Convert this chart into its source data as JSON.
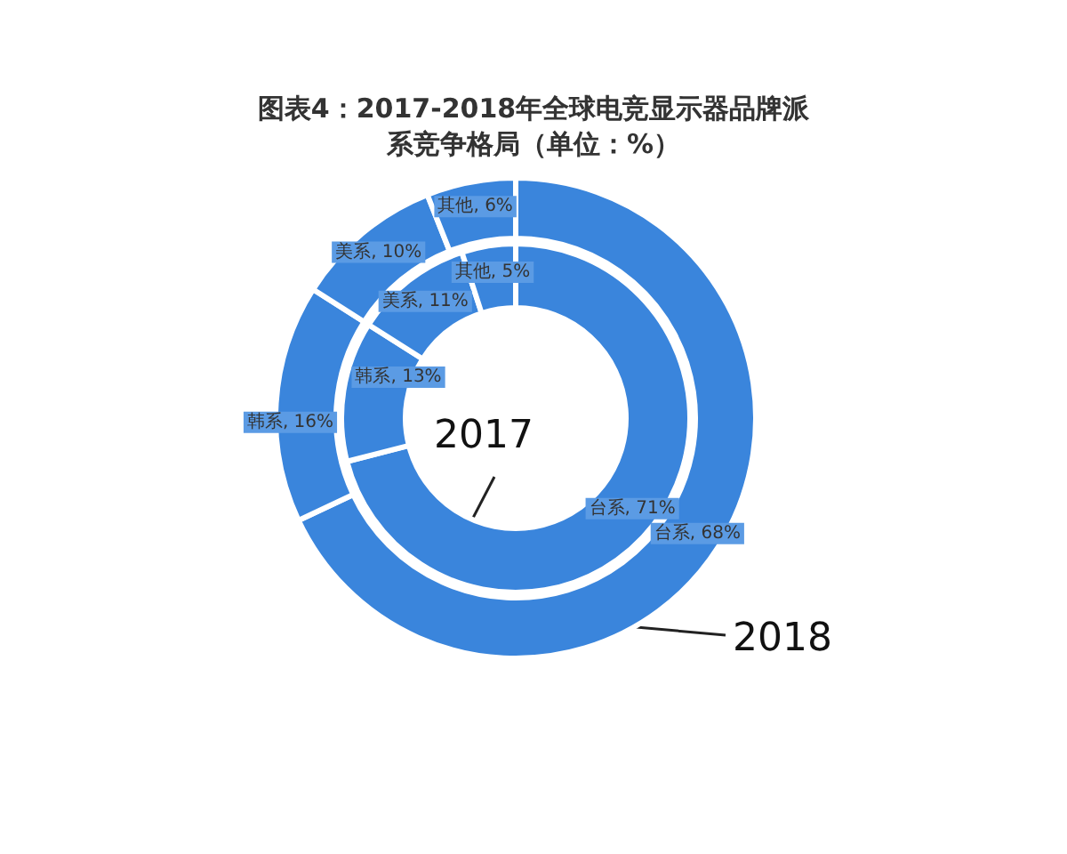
{
  "chart_data": {
    "type": "donut",
    "title": "图表4：2017-2018年全球电竞显示器品牌派系竞争格局（单位：%）",
    "categories": [
      "台系",
      "韩系",
      "美系",
      "其他"
    ],
    "series": [
      {
        "name": "2017",
        "values": [
          71,
          13,
          11,
          5
        ],
        "colors": [
          "#3a85dc",
          "#3a85dc",
          "#3a85dc",
          "#3a85dc"
        ],
        "value_labels": [
          ", 71%",
          ", 13%",
          ", 11%",
          ", 5%"
        ]
      },
      {
        "name": "2018",
        "values": [
          68,
          16,
          10,
          6
        ],
        "colors": [
          "#3a85dc",
          "#3a85dc",
          "#3a85dc",
          "#3a85dc"
        ],
        "value_labels": [
          ", 68%",
          ", 16%",
          ", 10%",
          ", 6%"
        ]
      }
    ]
  }
}
